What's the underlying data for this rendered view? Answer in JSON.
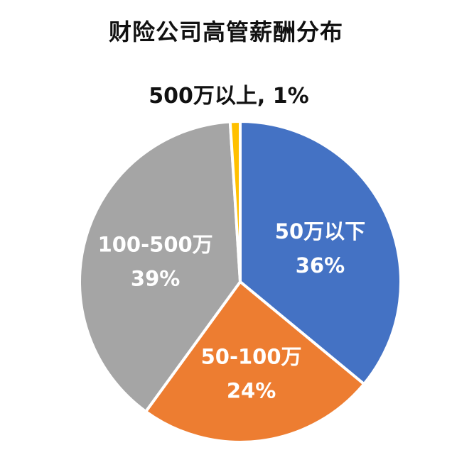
{
  "chart_data": {
    "type": "pie",
    "title": "财险公司高管薪酬分布",
    "slices": [
      {
        "label": "50万以下",
        "value": 36,
        "value_text": "36%",
        "color": "#4472C4",
        "label_color": "#ffffff"
      },
      {
        "label": "50-100万",
        "value": 24,
        "value_text": "24%",
        "color": "#ED7D31",
        "label_color": "#ffffff"
      },
      {
        "label": "100-500万",
        "value": 39,
        "value_text": "39%",
        "color": "#A5A5A5",
        "label_color": "#ffffff"
      },
      {
        "label": "500万以上",
        "value": 1,
        "value_text": "1%",
        "color": "#FFC000",
        "label_color": "#111111",
        "label_outside": true,
        "outside_text": "500万以上, 1%"
      }
    ],
    "legend": "none",
    "start_angle": "12 o'clock, clockwise"
  }
}
